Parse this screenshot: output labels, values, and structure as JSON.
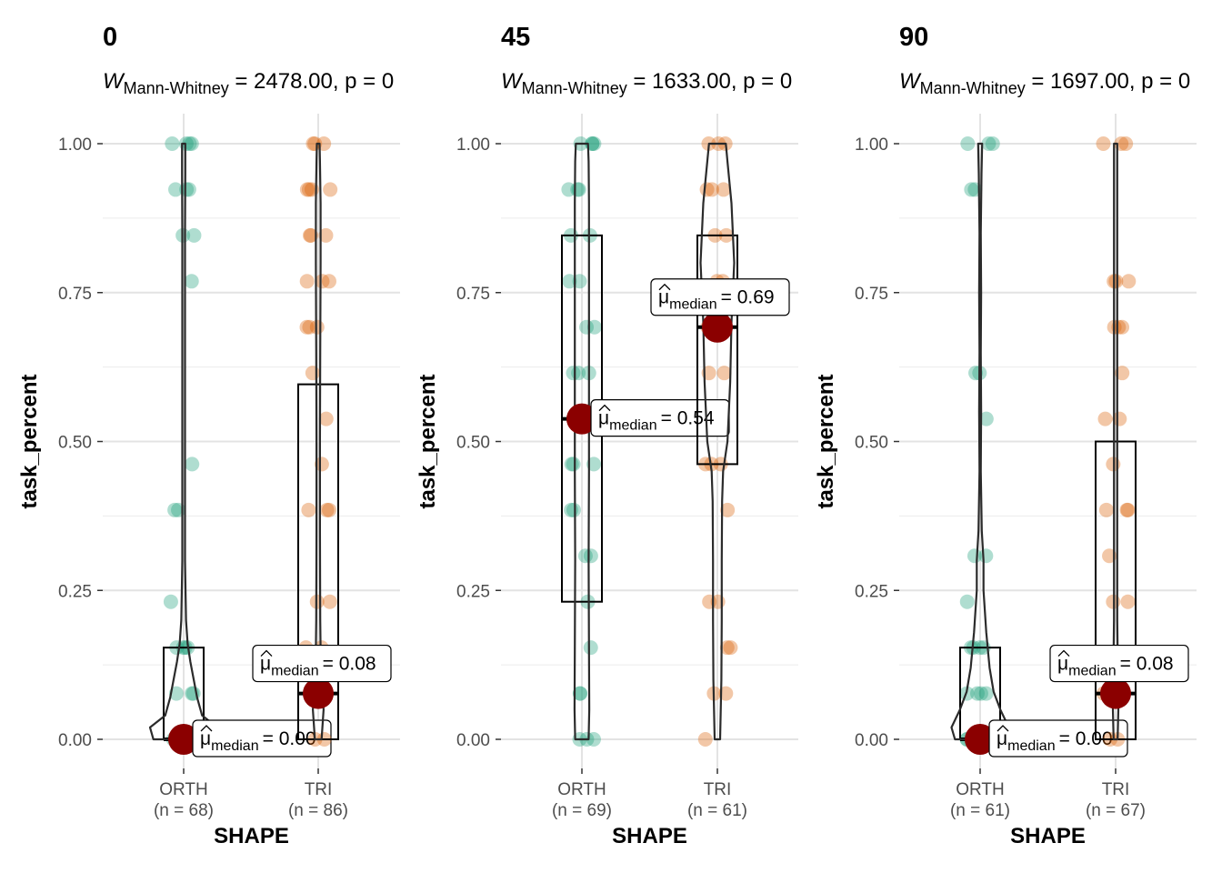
{
  "chart_data": [
    {
      "type": "violin-box-jitter",
      "title": "0",
      "subtitle": {
        "stat": "W",
        "test": "Mann-Whitney",
        "value": "2478.00",
        "rest": ", p = 0"
      },
      "xlabel": "SHAPE",
      "ylabel": "task_percent",
      "ylim": [
        0,
        1
      ],
      "yticks": [
        "0.00",
        "0.25",
        "0.50",
        "0.75",
        "1.00"
      ],
      "yvalues": [
        0,
        0.25,
        0.5,
        0.75,
        1.0
      ],
      "groups": [
        {
          "name": "ORTH",
          "n_label": "(n = 68)",
          "color": "#1b9e77",
          "box": {
            "q1": 0.0,
            "median": 0.0,
            "q3": 0.154
          },
          "median_label": "= 0.00",
          "points": [
            1.0,
            1.0,
            1.0,
            1.0,
            0.923,
            0.923,
            0.923,
            0.846,
            0.846,
            0.769,
            0.462,
            0.385,
            0.385,
            0.231,
            0.154,
            0.154,
            0.154,
            0.154,
            0.077,
            0.077,
            0.077,
            0.0,
            0.0,
            0.0,
            0.0,
            0.0,
            0.0
          ],
          "violin": [
            [
              0.0,
              0.9
            ],
            [
              0.02,
              1.0
            ],
            [
              0.04,
              0.55
            ],
            [
              0.07,
              0.4
            ],
            [
              0.1,
              0.3
            ],
            [
              0.13,
              0.2
            ],
            [
              0.16,
              0.12
            ],
            [
              0.2,
              0.07
            ],
            [
              0.3,
              0.04
            ],
            [
              0.5,
              0.04
            ],
            [
              0.7,
              0.04
            ],
            [
              0.85,
              0.04
            ],
            [
              0.95,
              0.05
            ],
            [
              1.0,
              0.05
            ]
          ]
        },
        {
          "name": "TRI",
          "n_label": "(n = 86)",
          "color": "#d95f02",
          "box": {
            "q1": 0.0,
            "median": 0.077,
            "q3": 0.596
          },
          "median_label": "= 0.08",
          "points": [
            1.0,
            1.0,
            1.0,
            0.923,
            0.923,
            0.923,
            0.923,
            0.846,
            0.846,
            0.846,
            0.769,
            0.769,
            0.769,
            0.692,
            0.692,
            0.692,
            0.615,
            0.538,
            0.462,
            0.385,
            0.385,
            0.385,
            0.231,
            0.231,
            0.154,
            0.154,
            0.077,
            0.077,
            0.0,
            0.0
          ],
          "violin": [
            [
              0.0,
              0.1
            ],
            [
              0.05,
              0.16
            ],
            [
              0.1,
              0.08
            ],
            [
              0.2,
              0.06
            ],
            [
              0.35,
              0.05
            ],
            [
              0.5,
              0.05
            ],
            [
              0.65,
              0.06
            ],
            [
              0.8,
              0.07
            ],
            [
              0.9,
              0.07
            ],
            [
              0.97,
              0.05
            ],
            [
              1.0,
              0.04
            ]
          ]
        }
      ]
    },
    {
      "type": "violin-box-jitter",
      "title": "45",
      "subtitle": {
        "stat": "W",
        "test": "Mann-Whitney",
        "value": "1633.00",
        "rest": ", p = 0"
      },
      "xlabel": "SHAPE",
      "ylabel": "task_percent",
      "ylim": [
        0,
        1
      ],
      "yticks": [
        "0.00",
        "0.25",
        "0.50",
        "0.75",
        "1.00"
      ],
      "yvalues": [
        0,
        0.25,
        0.5,
        0.75,
        1.0
      ],
      "groups": [
        {
          "name": "ORTH",
          "n_label": "(n = 69)",
          "color": "#1b9e77",
          "box": {
            "q1": 0.231,
            "median": 0.538,
            "q3": 0.846
          },
          "median_label": "= 0.54",
          "points": [
            1.0,
            1.0,
            1.0,
            1.0,
            0.923,
            0.923,
            0.923,
            0.846,
            0.846,
            0.769,
            0.769,
            0.692,
            0.692,
            0.615,
            0.615,
            0.615,
            0.538,
            0.538,
            0.462,
            0.462,
            0.462,
            0.385,
            0.385,
            0.308,
            0.308,
            0.231,
            0.154,
            0.077,
            0.077,
            0.0,
            0.0,
            0.0
          ],
          "violin": [
            [
              0.0,
              0.2
            ],
            [
              0.05,
              0.22
            ],
            [
              0.15,
              0.21
            ],
            [
              0.3,
              0.2
            ],
            [
              0.45,
              0.21
            ],
            [
              0.6,
              0.21
            ],
            [
              0.75,
              0.21
            ],
            [
              0.9,
              0.21
            ],
            [
              0.97,
              0.2
            ],
            [
              1.0,
              0.18
            ]
          ]
        },
        {
          "name": "TRI",
          "n_label": "(n = 61)",
          "color": "#d95f02",
          "box": {
            "q1": 0.462,
            "median": 0.692,
            "q3": 0.846
          },
          "median_label": "= 0.69",
          "points": [
            1.0,
            1.0,
            1.0,
            0.923,
            0.923,
            0.923,
            0.846,
            0.846,
            0.769,
            0.769,
            0.692,
            0.692,
            0.615,
            0.615,
            0.462,
            0.462,
            0.462,
            0.385,
            0.231,
            0.231,
            0.154,
            0.154,
            0.077,
            0.077,
            0.0
          ],
          "violin": [
            [
              0.0,
              0.08
            ],
            [
              0.05,
              0.1
            ],
            [
              0.1,
              0.12
            ],
            [
              0.2,
              0.13
            ],
            [
              0.3,
              0.13
            ],
            [
              0.4,
              0.14
            ],
            [
              0.45,
              0.17
            ],
            [
              0.5,
              0.3
            ],
            [
              0.6,
              0.38
            ],
            [
              0.7,
              0.42
            ],
            [
              0.8,
              0.5
            ],
            [
              0.9,
              0.42
            ],
            [
              0.97,
              0.3
            ],
            [
              1.0,
              0.25
            ]
          ]
        }
      ]
    },
    {
      "type": "violin-box-jitter",
      "title": "90",
      "subtitle": {
        "stat": "W",
        "test": "Mann-Whitney",
        "value": "1697.00",
        "rest": ", p = 0"
      },
      "xlabel": "SHAPE",
      "ylabel": "task_percent",
      "ylim": [
        0,
        1
      ],
      "yticks": [
        "0.00",
        "0.25",
        "0.50",
        "0.75",
        "1.00"
      ],
      "yvalues": [
        0,
        0.25,
        0.5,
        0.75,
        1.0
      ],
      "groups": [
        {
          "name": "ORTH",
          "n_label": "(n = 61)",
          "color": "#1b9e77",
          "box": {
            "q1": 0.0,
            "median": 0.0,
            "q3": 0.154
          },
          "median_label": "= 0.00",
          "points": [
            1.0,
            1.0,
            1.0,
            0.923,
            0.923,
            0.615,
            0.615,
            0.538,
            0.308,
            0.308,
            0.231,
            0.154,
            0.154,
            0.154,
            0.154,
            0.077,
            0.077,
            0.077,
            0.077,
            0.0,
            0.0,
            0.0,
            0.0
          ],
          "violin": [
            [
              0.0,
              0.75
            ],
            [
              0.02,
              0.85
            ],
            [
              0.05,
              0.6
            ],
            [
              0.08,
              0.4
            ],
            [
              0.12,
              0.28
            ],
            [
              0.18,
              0.18
            ],
            [
              0.25,
              0.1
            ],
            [
              0.3,
              0.1
            ],
            [
              0.35,
              0.05
            ],
            [
              0.45,
              0.02
            ],
            [
              0.55,
              0.03
            ],
            [
              0.65,
              0.02
            ],
            [
              0.75,
              0.03
            ],
            [
              0.85,
              0.02
            ],
            [
              0.95,
              0.04
            ],
            [
              1.0,
              0.06
            ]
          ]
        },
        {
          "name": "TRI",
          "n_label": "(n = 67)",
          "color": "#d95f02",
          "box": {
            "q1": 0.0,
            "median": 0.077,
            "q3": 0.5
          },
          "median_label": "= 0.08",
          "points": [
            1.0,
            1.0,
            1.0,
            0.769,
            0.769,
            0.769,
            0.692,
            0.692,
            0.692,
            0.615,
            0.538,
            0.538,
            0.462,
            0.385,
            0.385,
            0.385,
            0.308,
            0.231,
            0.231,
            0.077,
            0.077,
            0.0,
            0.0
          ],
          "violin": [
            [
              0.0,
              0.06
            ],
            [
              0.05,
              0.08
            ],
            [
              0.1,
              0.07
            ],
            [
              0.2,
              0.05
            ],
            [
              0.35,
              0.05
            ],
            [
              0.5,
              0.05
            ],
            [
              0.65,
              0.05
            ],
            [
              0.8,
              0.05
            ],
            [
              0.9,
              0.05
            ],
            [
              1.0,
              0.05
            ]
          ]
        }
      ]
    }
  ]
}
